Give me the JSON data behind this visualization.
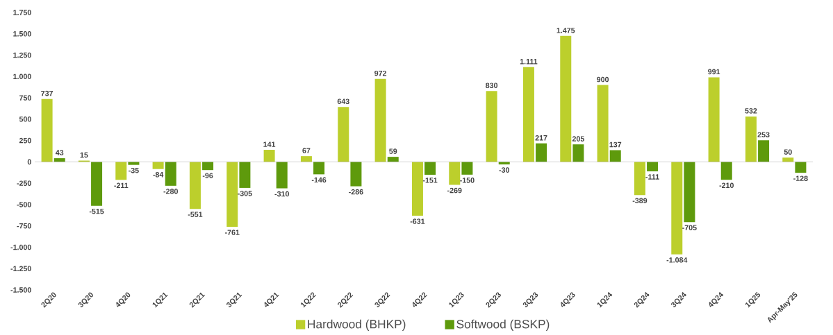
{
  "chart_data": {
    "type": "bar",
    "categories": [
      "2Q20",
      "3Q20",
      "4Q20",
      "1Q21",
      "2Q21",
      "3Q21",
      "4Q21",
      "1Q22",
      "2Q22",
      "3Q22",
      "4Q22",
      "1Q23",
      "2Q23",
      "3Q23",
      "4Q23",
      "1Q24",
      "2Q24",
      "3Q24",
      "4Q24",
      "1Q25",
      "Apr-May'25"
    ],
    "series": [
      {
        "name": "Hardwood (BHKP)",
        "color": "#bccf2c",
        "values": [
          737,
          15,
          -211,
          -84,
          -551,
          -761,
          141,
          67,
          643,
          972,
          -631,
          -269,
          830,
          1111,
          1475,
          900,
          -389,
          -1084,
          991,
          532,
          50
        ],
        "value_labels": [
          "737",
          "15",
          "-211",
          "-84",
          "-551",
          "-761",
          "141",
          "67",
          "643",
          "972",
          "-631",
          "-269",
          "830",
          "1.111",
          "1.475",
          "900",
          "-389",
          "-1.084",
          "991",
          "532",
          "50"
        ]
      },
      {
        "name": "Softwood (BSKP)",
        "color": "#5e9a0c",
        "values": [
          43,
          -515,
          -35,
          -280,
          -96,
          -305,
          -310,
          -146,
          -286,
          59,
          -151,
          -150,
          -30,
          217,
          205,
          137,
          -111,
          -705,
          -210,
          253,
          -128
        ],
        "value_labels": [
          "43",
          "-515",
          "-35",
          "-280",
          "-96",
          "-305",
          "-310",
          "-146",
          "-286",
          "59",
          "-151",
          "-150",
          "-30",
          "217",
          "205",
          "137",
          "-111",
          "-705",
          "-210",
          "253",
          "-128"
        ]
      }
    ],
    "ylim": [
      -1500,
      1750
    ],
    "yticks": [
      {
        "value": -1500,
        "label": "-1.500"
      },
      {
        "value": -1250,
        "label": "-1.250"
      },
      {
        "value": -1000,
        "label": "-1.000"
      },
      {
        "value": -750,
        "label": "-750"
      },
      {
        "value": -500,
        "label": "-500"
      },
      {
        "value": -250,
        "label": "-250"
      },
      {
        "value": 0,
        "label": "0"
      },
      {
        "value": 250,
        "label": "250"
      },
      {
        "value": 500,
        "label": "500"
      },
      {
        "value": 750,
        "label": "750"
      },
      {
        "value": 1000,
        "label": "1.000"
      },
      {
        "value": 1250,
        "label": "1.250"
      },
      {
        "value": 1500,
        "label": "1.500"
      },
      {
        "value": 1750,
        "label": "1.750"
      }
    ],
    "legend": "bottom",
    "ref_lines": [
      {
        "axis": "y",
        "value": 0,
        "color": "#a6a6a6"
      }
    ],
    "grid": false
  }
}
